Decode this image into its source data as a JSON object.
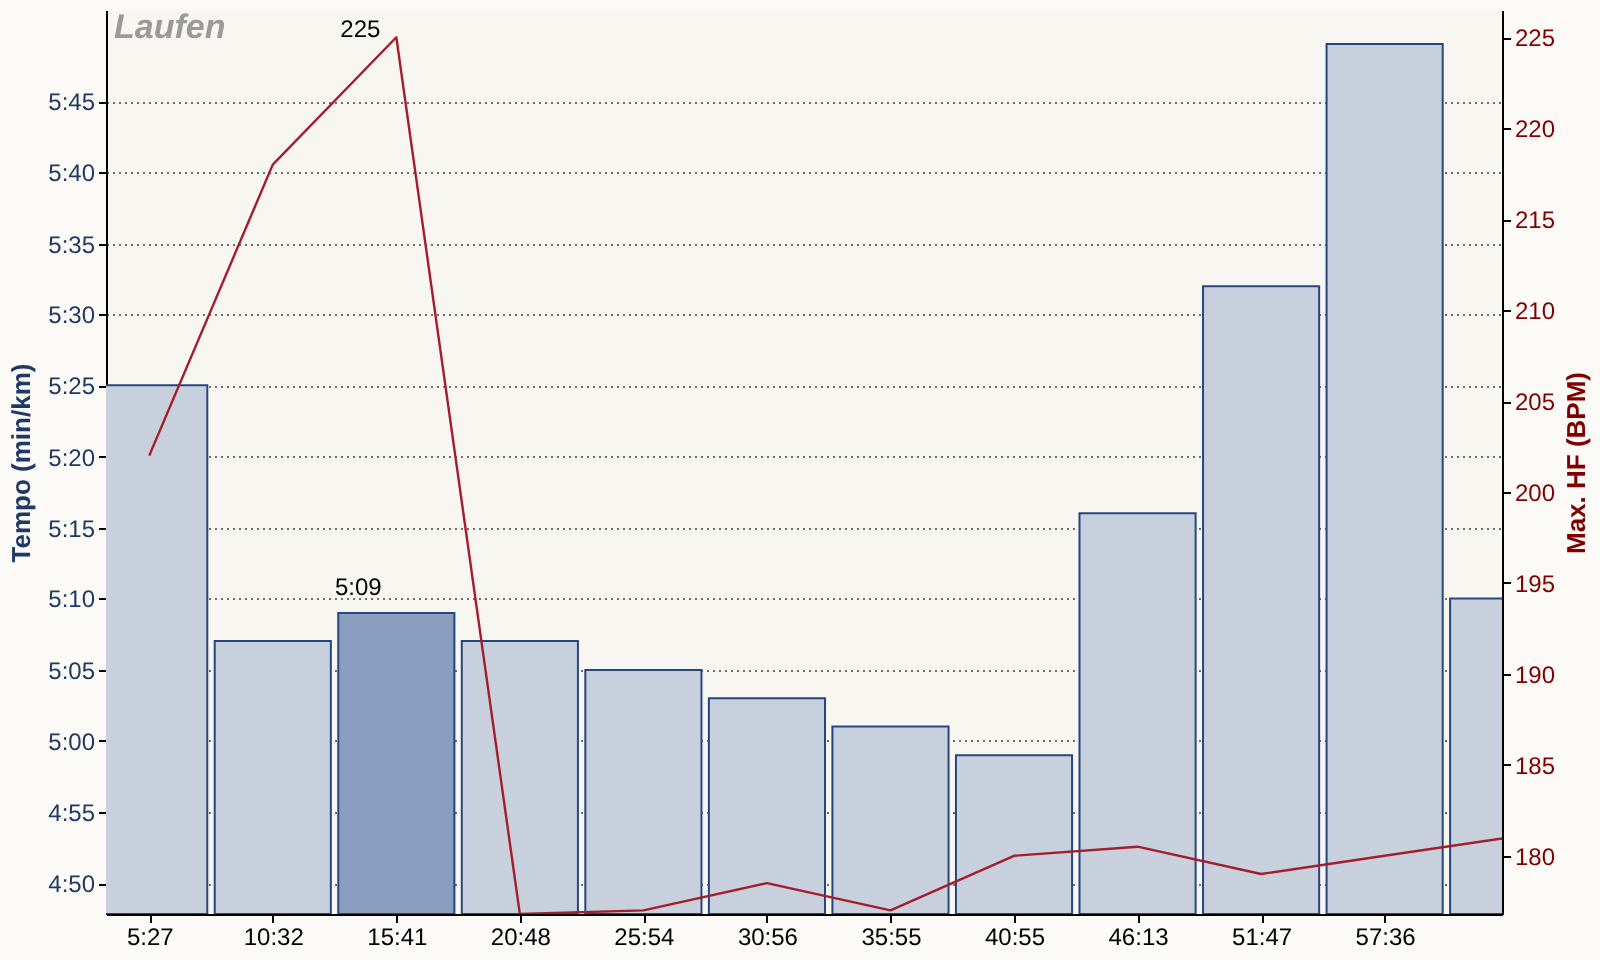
{
  "chart_data": {
    "type": "bar",
    "title": "Laufen",
    "ylabel": "Tempo (min/km)",
    "y2label": "Max. HF (BPM)",
    "categories": [
      "5:27",
      "10:32",
      "15:41",
      "20:48",
      "25:54",
      "30:56",
      "35:55",
      "40:55",
      "46:13",
      "51:47",
      "57:36",
      null
    ],
    "series": [
      {
        "colors": [
          "#c9d0dd",
          "#c9d0dd",
          "#8a9fc0",
          "#c9d0dd",
          "#c9d0dd",
          "#c9d0dd",
          "#c9d0dd",
          "#c9d0dd",
          "#c9d0dd",
          "#c9d0dd",
          "#c9d0dd",
          "#c9d0dd"
        ],
        "values": [
          5.417,
          5.117,
          5.15,
          5.117,
          5.083,
          5.05,
          5.017,
          4.983,
          5.267,
          5.533,
          5.817,
          5.167
        ],
        "value_labels": [
          null,
          null,
          "5:09",
          null,
          null,
          null,
          null,
          null,
          null,
          null,
          null,
          null
        ]
      },
      {
        "type": "line",
        "axis": "y2",
        "color": "#a31d2c",
        "values": [
          202,
          218,
          225,
          176.8,
          177,
          178.5,
          177,
          180,
          180.5,
          179,
          180,
          181
        ],
        "value_labels": [
          null,
          null,
          "225",
          null,
          null,
          null,
          null,
          null,
          null,
          null,
          null,
          null
        ]
      }
    ],
    "ylim": [
      4.797,
      5.857
    ],
    "yticks": [
      {
        "value": 4.833,
        "label": "4:50"
      },
      {
        "value": 4.917,
        "label": "4:55"
      },
      {
        "value": 5,
        "label": "5:00"
      },
      {
        "value": 5.083,
        "label": "5:05"
      },
      {
        "value": 5.167,
        "label": "5:10"
      },
      {
        "value": 5.25,
        "label": "5:15"
      },
      {
        "value": 5.333,
        "label": "5:20"
      },
      {
        "value": 5.417,
        "label": "5:25"
      },
      {
        "value": 5.5,
        "label": "5:30"
      },
      {
        "value": 5.583,
        "label": "5:35"
      },
      {
        "value": 5.667,
        "label": "5:40"
      },
      {
        "value": 5.75,
        "label": "5:45"
      }
    ],
    "y2lim": [
      176.8,
      226.5
    ],
    "y2ticks": [
      180,
      185,
      190,
      195,
      200,
      205,
      210,
      215,
      220,
      225
    ],
    "grid": "y"
  }
}
